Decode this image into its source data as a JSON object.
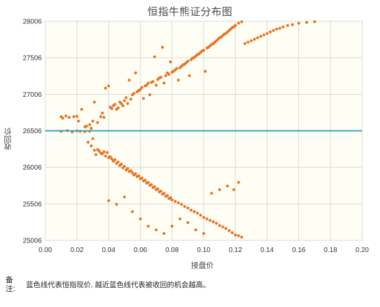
{
  "chart": {
    "title": "恒指牛熊证分布图",
    "xlabel": "接盘价",
    "ylabel": "收回价"
  },
  "note": {
    "label": "备注:",
    "text": "蓝色线代表恒指现价, 越近蓝色线代表被收回的机会越高。"
  },
  "colors": {
    "points": "#e8731f",
    "current_index_line": "#3aa7c4",
    "plot_background": "#fffef5",
    "grid": "#d9d9d9"
  },
  "chart_data": {
    "type": "scatter",
    "title": "恒指牛熊证分布图",
    "xlabel": "接盘价",
    "ylabel": "收回价",
    "xlim": [
      0,
      0.2
    ],
    "ylim": [
      25006,
      28006
    ],
    "x_ticks": [
      "0.00",
      "0.02",
      "0.04",
      "0.06",
      "0.08",
      "0.10",
      "0.12",
      "0.14",
      "0.16",
      "0.18",
      "0.20"
    ],
    "y_ticks": [
      "25006",
      "25506",
      "26006",
      "26506",
      "27006",
      "27506",
      "28006"
    ],
    "grid": true,
    "current_index": 26506,
    "series": [
      {
        "name": "",
        "points": [
          [
            0.01,
            26700
          ],
          [
            0.011,
            26680
          ],
          [
            0.013,
            26710
          ],
          [
            0.015,
            26690
          ],
          [
            0.018,
            26700
          ],
          [
            0.02,
            26705
          ],
          [
            0.021,
            26640
          ],
          [
            0.023,
            26800
          ],
          [
            0.025,
            26560
          ],
          [
            0.026,
            26570
          ],
          [
            0.028,
            26590
          ],
          [
            0.029,
            26540
          ],
          [
            0.03,
            26640
          ],
          [
            0.031,
            26900
          ],
          [
            0.033,
            26620
          ],
          [
            0.035,
            26700
          ],
          [
            0.036,
            26750
          ],
          [
            0.037,
            26690
          ],
          [
            0.038,
            27090
          ],
          [
            0.04,
            27120
          ],
          [
            0.041,
            26830
          ],
          [
            0.042,
            26810
          ],
          [
            0.043,
            26850
          ],
          [
            0.044,
            26870
          ],
          [
            0.045,
            26800
          ],
          [
            0.046,
            26820
          ],
          [
            0.047,
            26900
          ],
          [
            0.048,
            26880
          ],
          [
            0.049,
            26850
          ],
          [
            0.05,
            26920
          ],
          [
            0.051,
            26960
          ],
          [
            0.052,
            26880
          ],
          [
            0.053,
            27200
          ],
          [
            0.054,
            26940
          ],
          [
            0.055,
            27000
          ],
          [
            0.056,
            27020
          ],
          [
            0.057,
            27300
          ],
          [
            0.058,
            27040
          ],
          [
            0.059,
            27060
          ],
          [
            0.06,
            27070
          ],
          [
            0.061,
            27100
          ],
          [
            0.062,
            26950
          ],
          [
            0.063,
            27120
          ],
          [
            0.064,
            27130
          ],
          [
            0.065,
            27160
          ],
          [
            0.066,
            27000
          ],
          [
            0.067,
            27170
          ],
          [
            0.068,
            27180
          ],
          [
            0.069,
            27520
          ],
          [
            0.07,
            27130
          ],
          [
            0.071,
            27210
          ],
          [
            0.072,
            27230
          ],
          [
            0.073,
            27240
          ],
          [
            0.074,
            27650
          ],
          [
            0.075,
            27160
          ],
          [
            0.076,
            27260
          ],
          [
            0.077,
            27300
          ],
          [
            0.078,
            27280
          ],
          [
            0.079,
            27450
          ],
          [
            0.08,
            27310
          ],
          [
            0.081,
            27320
          ],
          [
            0.082,
            27340
          ],
          [
            0.083,
            27360
          ],
          [
            0.084,
            27200
          ],
          [
            0.085,
            27370
          ],
          [
            0.086,
            27390
          ],
          [
            0.087,
            27410
          ],
          [
            0.088,
            27420
          ],
          [
            0.089,
            27440
          ],
          [
            0.09,
            27460
          ],
          [
            0.091,
            27260
          ],
          [
            0.092,
            27480
          ],
          [
            0.093,
            27500
          ],
          [
            0.094,
            27510
          ],
          [
            0.095,
            27530
          ],
          [
            0.096,
            27550
          ],
          [
            0.097,
            27560
          ],
          [
            0.098,
            27580
          ],
          [
            0.099,
            27600
          ],
          [
            0.1,
            27610
          ],
          [
            0.101,
            27320
          ],
          [
            0.102,
            27640
          ],
          [
            0.103,
            27650
          ],
          [
            0.104,
            27670
          ],
          [
            0.105,
            27690
          ],
          [
            0.106,
            27700
          ],
          [
            0.107,
            27720
          ],
          [
            0.108,
            27740
          ],
          [
            0.109,
            27760
          ],
          [
            0.11,
            27780
          ],
          [
            0.111,
            27790
          ],
          [
            0.112,
            27810
          ],
          [
            0.113,
            27830
          ],
          [
            0.114,
            27840
          ],
          [
            0.115,
            27860
          ],
          [
            0.116,
            27880
          ],
          [
            0.117,
            27900
          ],
          [
            0.118,
            27920
          ],
          [
            0.119,
            27930
          ],
          [
            0.12,
            27950
          ],
          [
            0.122,
            27980
          ],
          [
            0.124,
            28000
          ],
          [
            0.126,
            27700
          ],
          [
            0.128,
            27720
          ],
          [
            0.13,
            27740
          ],
          [
            0.132,
            27760
          ],
          [
            0.134,
            27780
          ],
          [
            0.136,
            27800
          ],
          [
            0.138,
            27820
          ],
          [
            0.14,
            27840
          ],
          [
            0.142,
            27860
          ],
          [
            0.144,
            27880
          ],
          [
            0.146,
            27900
          ],
          [
            0.148,
            27910
          ],
          [
            0.15,
            27930
          ],
          [
            0.153,
            27950
          ],
          [
            0.156,
            27960
          ],
          [
            0.16,
            27980
          ],
          [
            0.165,
            27990
          ],
          [
            0.17,
            28000
          ],
          [
            0.01,
            26500
          ],
          [
            0.014,
            26510
          ],
          [
            0.017,
            26490
          ],
          [
            0.02,
            26505
          ],
          [
            0.022,
            26500
          ],
          [
            0.025,
            26495
          ],
          [
            0.027,
            26350
          ],
          [
            0.028,
            26500
          ],
          [
            0.029,
            26300
          ],
          [
            0.03,
            26400
          ],
          [
            0.031,
            26240
          ],
          [
            0.032,
            26180
          ],
          [
            0.033,
            26250
          ],
          [
            0.034,
            26230
          ],
          [
            0.035,
            26200
          ],
          [
            0.036,
            26190
          ],
          [
            0.037,
            26220
          ],
          [
            0.038,
            26160
          ],
          [
            0.039,
            26210
          ],
          [
            0.04,
            26140
          ],
          [
            0.041,
            26150
          ],
          [
            0.042,
            26120
          ],
          [
            0.043,
            26090
          ],
          [
            0.044,
            26110
          ],
          [
            0.045,
            26060
          ],
          [
            0.046,
            26080
          ],
          [
            0.047,
            26030
          ],
          [
            0.048,
            26050
          ],
          [
            0.049,
            26000
          ],
          [
            0.05,
            26020
          ],
          [
            0.051,
            25970
          ],
          [
            0.052,
            25990
          ],
          [
            0.053,
            25950
          ],
          [
            0.054,
            25960
          ],
          [
            0.055,
            25930
          ],
          [
            0.056,
            25900
          ],
          [
            0.057,
            25920
          ],
          [
            0.058,
            25880
          ],
          [
            0.059,
            25890
          ],
          [
            0.06,
            25850
          ],
          [
            0.061,
            25860
          ],
          [
            0.062,
            25820
          ],
          [
            0.063,
            25830
          ],
          [
            0.064,
            25790
          ],
          [
            0.065,
            25800
          ],
          [
            0.066,
            25760
          ],
          [
            0.067,
            25770
          ],
          [
            0.068,
            25730
          ],
          [
            0.069,
            25740
          ],
          [
            0.07,
            25700
          ],
          [
            0.071,
            25710
          ],
          [
            0.072,
            25670
          ],
          [
            0.073,
            25680
          ],
          [
            0.074,
            25640
          ],
          [
            0.075,
            25650
          ],
          [
            0.076,
            25610
          ],
          [
            0.077,
            25620
          ],
          [
            0.078,
            25580
          ],
          [
            0.079,
            25590
          ],
          [
            0.08,
            25560
          ],
          [
            0.082,
            25540
          ],
          [
            0.084,
            25520
          ],
          [
            0.086,
            25500
          ],
          [
            0.088,
            25470
          ],
          [
            0.09,
            25450
          ],
          [
            0.092,
            25420
          ],
          [
            0.094,
            25400
          ],
          [
            0.096,
            25380
          ],
          [
            0.098,
            25350
          ],
          [
            0.1,
            25320
          ],
          [
            0.102,
            25300
          ],
          [
            0.104,
            25280
          ],
          [
            0.106,
            25260
          ],
          [
            0.108,
            25240
          ],
          [
            0.11,
            25210
          ],
          [
            0.112,
            25190
          ],
          [
            0.114,
            25170
          ],
          [
            0.116,
            25140
          ],
          [
            0.118,
            25110
          ],
          [
            0.12,
            25080
          ],
          [
            0.122,
            25070
          ],
          [
            0.124,
            25050
          ],
          [
            0.04,
            25550
          ],
          [
            0.045,
            25500
          ],
          [
            0.05,
            25600
          ],
          [
            0.055,
            25400
          ],
          [
            0.06,
            25300
          ],
          [
            0.065,
            25200
          ],
          [
            0.07,
            25150
          ],
          [
            0.075,
            25100
          ],
          [
            0.08,
            25200
          ],
          [
            0.085,
            25300
          ],
          [
            0.09,
            25250
          ],
          [
            0.095,
            25150
          ],
          [
            0.1,
            25100
          ],
          [
            0.105,
            25650
          ],
          [
            0.11,
            25700
          ],
          [
            0.115,
            25750
          ],
          [
            0.119,
            25700
          ],
          [
            0.122,
            25800
          ]
        ]
      }
    ]
  }
}
